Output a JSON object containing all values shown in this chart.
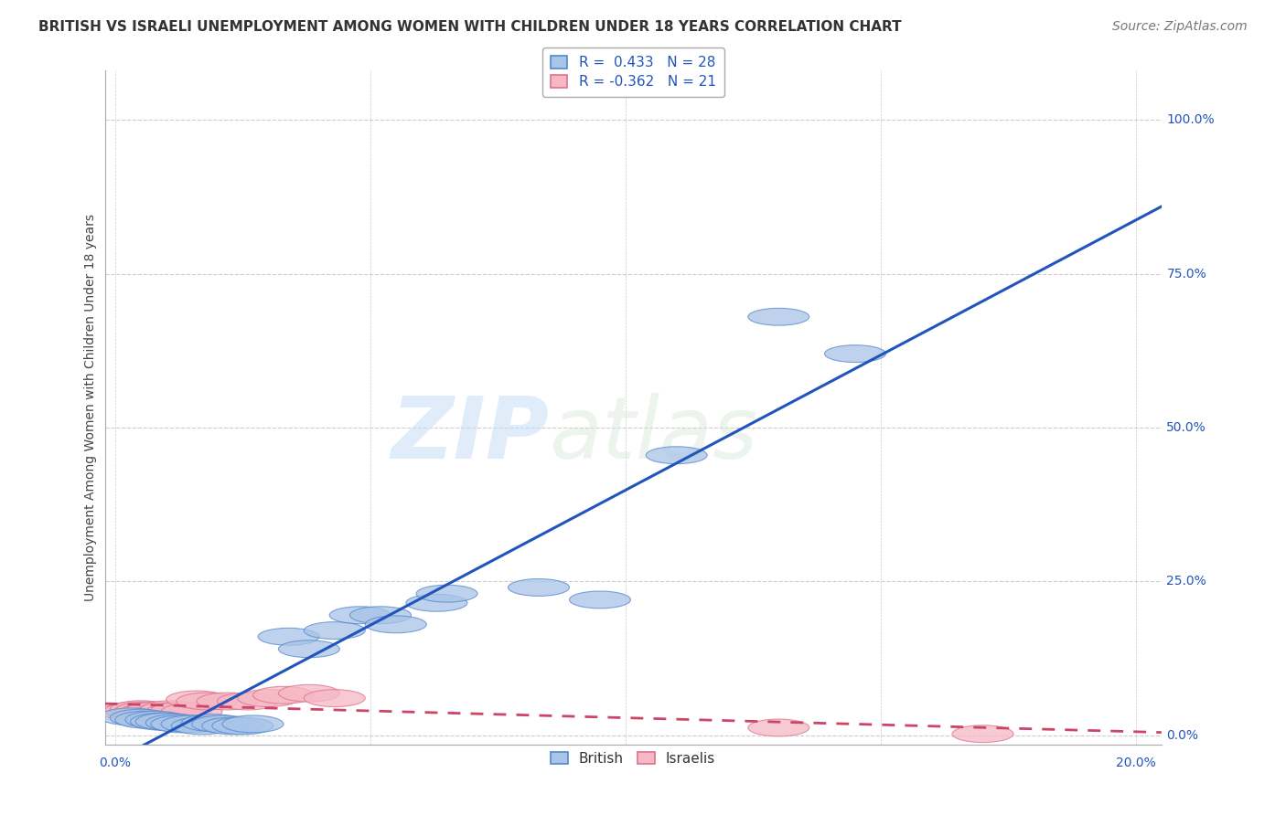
{
  "title": "BRITISH VS ISRAELI UNEMPLOYMENT AMONG WOMEN WITH CHILDREN UNDER 18 YEARS CORRELATION CHART",
  "source": "Source: ZipAtlas.com",
  "ylabel": "Unemployment Among Women with Children Under 18 years",
  "legend_british_R": "0.433",
  "legend_british_N": "28",
  "legend_israeli_R": "-0.362",
  "legend_israeli_N": "21",
  "legend_label_british": "British",
  "legend_label_israeli": "Israelis",
  "british_color": "#a8c4e8",
  "israeli_color": "#f5b8c4",
  "british_edge_color": "#5588cc",
  "israeli_edge_color": "#e07090",
  "british_line_color": "#2255bb",
  "israeli_line_color": "#cc4466",
  "watermark_zip": "ZIP",
  "watermark_atlas": "atlas",
  "british_points": [
    [
      0.003,
      0.03
    ],
    [
      0.005,
      0.028
    ],
    [
      0.006,
      0.025
    ],
    [
      0.008,
      0.025
    ],
    [
      0.009,
      0.022
    ],
    [
      0.01,
      0.022
    ],
    [
      0.012,
      0.02
    ],
    [
      0.013,
      0.018
    ],
    [
      0.015,
      0.018
    ],
    [
      0.017,
      0.015
    ],
    [
      0.019,
      0.02
    ],
    [
      0.021,
      0.018
    ],
    [
      0.023,
      0.015
    ],
    [
      0.025,
      0.015
    ],
    [
      0.027,
      0.018
    ],
    [
      0.034,
      0.16
    ],
    [
      0.038,
      0.14
    ],
    [
      0.043,
      0.17
    ],
    [
      0.048,
      0.195
    ],
    [
      0.052,
      0.195
    ],
    [
      0.055,
      0.18
    ],
    [
      0.063,
      0.215
    ],
    [
      0.065,
      0.23
    ],
    [
      0.083,
      0.24
    ],
    [
      0.095,
      0.22
    ],
    [
      0.11,
      0.455
    ],
    [
      0.13,
      0.68
    ],
    [
      0.145,
      0.62
    ]
  ],
  "israeli_points": [
    [
      0.003,
      0.038
    ],
    [
      0.004,
      0.04
    ],
    [
      0.005,
      0.042
    ],
    [
      0.006,
      0.04
    ],
    [
      0.007,
      0.038
    ],
    [
      0.008,
      0.04
    ],
    [
      0.01,
      0.038
    ],
    [
      0.011,
      0.042
    ],
    [
      0.012,
      0.038
    ],
    [
      0.013,
      0.04
    ],
    [
      0.015,
      0.038
    ],
    [
      0.016,
      0.058
    ],
    [
      0.018,
      0.055
    ],
    [
      0.022,
      0.055
    ],
    [
      0.026,
      0.055
    ],
    [
      0.03,
      0.06
    ],
    [
      0.033,
      0.065
    ],
    [
      0.038,
      0.068
    ],
    [
      0.043,
      0.06
    ],
    [
      0.13,
      0.012
    ],
    [
      0.17,
      0.002
    ]
  ],
  "xlim": [
    -0.002,
    0.205
  ],
  "ylim": [
    -0.015,
    1.08
  ],
  "yticks": [
    0.0,
    0.25,
    0.5,
    0.75,
    1.0
  ],
  "xticks": [
    0.0,
    0.05,
    0.1,
    0.15,
    0.2
  ],
  "y_labels": {
    "0.0": "0.0%",
    "0.25": "25.0%",
    "0.5": "50.0%",
    "0.75": "75.0%",
    "1.0": "100.0%"
  },
  "x_labels": {
    "0.0": "0.0%",
    "0.2": "20.0%"
  },
  "grid_color": "#cccccc",
  "bg_color": "#ffffff",
  "title_fontsize": 11,
  "source_fontsize": 10,
  "ylabel_fontsize": 10,
  "legend_fontsize": 11,
  "tick_fontsize": 10
}
